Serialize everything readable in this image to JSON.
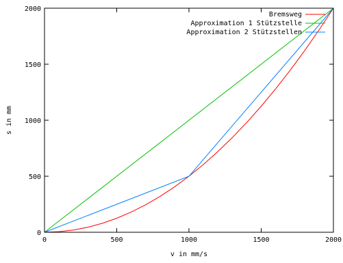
{
  "chart_data": {
    "type": "line",
    "title": "",
    "xlabel": "v in mm/s",
    "ylabel": "s in mm",
    "xlim": [
      0,
      2000
    ],
    "ylim": [
      0,
      2000
    ],
    "x_ticks": [
      0,
      500,
      1000,
      1500,
      2000
    ],
    "y_ticks": [
      0,
      500,
      1000,
      1500,
      2000
    ],
    "x_tick_labels": [
      "0",
      "500",
      "1000",
      "1500",
      "2000"
    ],
    "y_tick_labels": [
      "0",
      "500",
      "1000",
      "1500",
      "2000"
    ],
    "grid": false,
    "legend_position": "top-right",
    "series": [
      {
        "name": "Bremsweg",
        "color": "#ff0000",
        "x": [
          0,
          100,
          200,
          300,
          400,
          500,
          600,
          700,
          800,
          900,
          1000,
          1100,
          1200,
          1300,
          1400,
          1500,
          1600,
          1700,
          1800,
          1900,
          2000
        ],
        "y": [
          0,
          5,
          20,
          45,
          80,
          125,
          180,
          245,
          320,
          405,
          500,
          605,
          720,
          845,
          980,
          1125,
          1280,
          1445,
          1620,
          1805,
          2000
        ]
      },
      {
        "name": "Approximation 1 Stützstelle",
        "color": "#00c000",
        "x": [
          0,
          2000
        ],
        "y": [
          0,
          2000
        ]
      },
      {
        "name": "Approximation 2 Stützstellen",
        "color": "#0080ff",
        "x": [
          0,
          1000,
          2000
        ],
        "y": [
          0,
          500,
          2000
        ]
      }
    ]
  }
}
